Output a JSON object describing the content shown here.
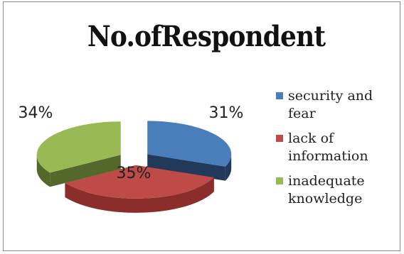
{
  "chart_data": {
    "type": "pie",
    "style": "3d-exploded",
    "title": "No.ofRespondent",
    "categories": [
      "security and fear",
      "lack of information",
      "inadequate knowledge"
    ],
    "values": [
      31,
      35,
      34
    ],
    "data_labels": [
      "31%",
      "35%",
      "34%"
    ],
    "colors": [
      "#4a7ebb",
      "#be4b48",
      "#98b954"
    ],
    "side_colors": [
      "#23395a",
      "#8a2d2b",
      "#55682c"
    ],
    "legend_position": "right"
  }
}
